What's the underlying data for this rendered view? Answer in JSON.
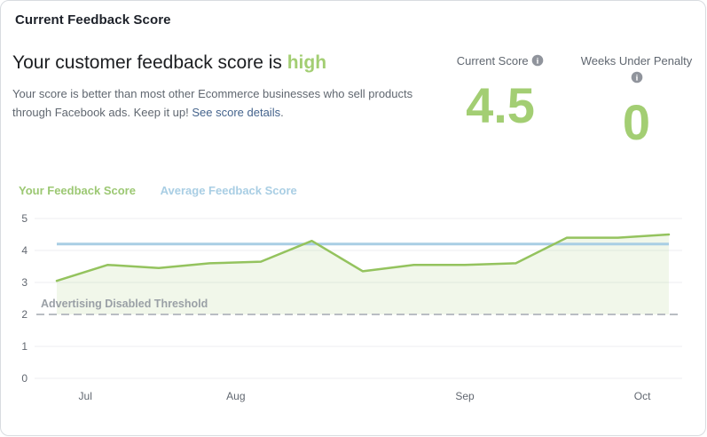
{
  "card": {
    "title": "Current Feedback Score"
  },
  "summary": {
    "headline_prefix": "Your customer feedback score is ",
    "headline_status": "high",
    "description": "Your score is better than most other Ecommerce businesses who sell products through Facebook ads. Keep it up! ",
    "link_text": "See score details",
    "period": "."
  },
  "metrics": [
    {
      "label": "Current Score",
      "value": "4.5"
    },
    {
      "label": "Weeks Under Penalty",
      "value": "0"
    }
  ],
  "legend": [
    {
      "label": "Your Feedback Score"
    },
    {
      "label": "Average Feedback Score"
    }
  ],
  "colors": {
    "score_green": "#a3ce73",
    "legend_green": "#9cc873",
    "line_green": "#94c35e",
    "average_blue": "#a9cee4",
    "link_blue": "#44638c"
  },
  "chart_data": {
    "type": "line",
    "x_unit": "week",
    "x": [
      0,
      1,
      2,
      3,
      4,
      5,
      6,
      7,
      8,
      9,
      10,
      11,
      12
    ],
    "series": [
      {
        "name": "Your Feedback Score",
        "color": "#94c35e",
        "values": [
          3.05,
          3.55,
          3.45,
          3.6,
          3.65,
          4.3,
          3.35,
          3.55,
          3.55,
          3.6,
          4.4,
          4.4,
          4.5
        ],
        "fill": true,
        "fill_to": 2
      },
      {
        "name": "Average Feedback Score",
        "color": "#a9cee4",
        "values": [
          4.2,
          4.2,
          4.2,
          4.2,
          4.2,
          4.2,
          4.2,
          4.2,
          4.2,
          4.2,
          4.2,
          4.2,
          4.2
        ]
      }
    ],
    "threshold": {
      "value": 2,
      "label": "Advertising Disabled Threshold"
    },
    "ylim": [
      0,
      5
    ],
    "yticks": [
      0,
      1,
      2,
      3,
      4,
      5
    ],
    "xticks": [
      {
        "label": "Jul",
        "week": 0.56
      },
      {
        "label": "Aug",
        "week": 3.51
      },
      {
        "label": "Sep",
        "week": 8.0
      },
      {
        "label": "Oct",
        "week": 11.48
      }
    ],
    "grid": true,
    "legend_position": "top-left"
  }
}
